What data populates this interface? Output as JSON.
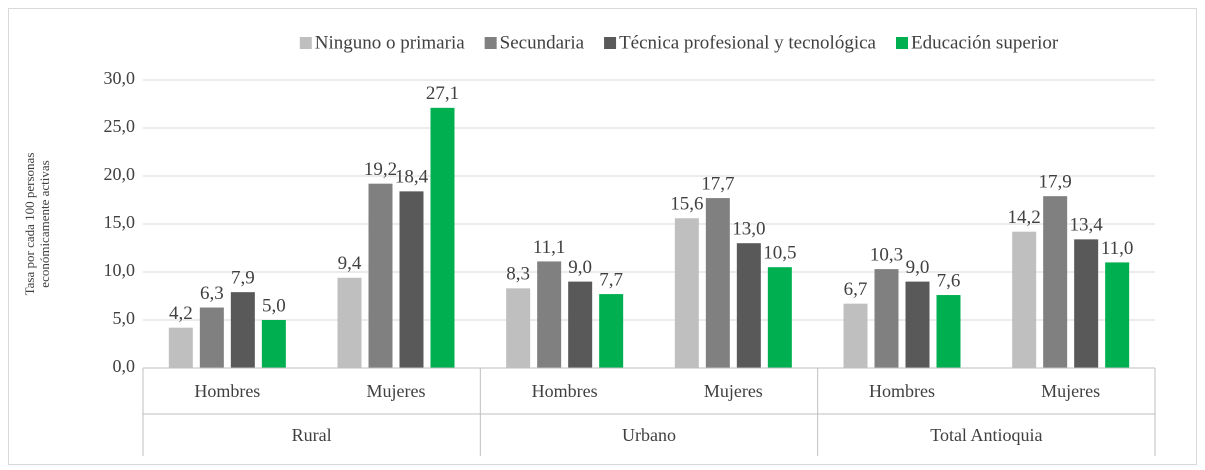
{
  "chart_data": {
    "type": "bar",
    "y_axis_label": "Tasa por cada 100 personas económicamente activas",
    "categories": [
      "Hombres",
      "Mujeres",
      "Hombres",
      "Mujeres",
      "Hombres",
      "Mujeres"
    ],
    "category_groups": [
      "Rural",
      "Urbano",
      "Total Antioquia"
    ],
    "series": [
      {
        "name": "Ninguno o primaria",
        "color": "#bfbfbf",
        "values": [
          4.2,
          9.4,
          8.3,
          15.6,
          6.7,
          14.2
        ],
        "value_labels": [
          "4,2",
          "9,4",
          "8,3",
          "15,6",
          "6,7",
          "14,2"
        ]
      },
      {
        "name": "Secundaria",
        "color": "#808080",
        "values": [
          6.3,
          19.2,
          11.1,
          17.7,
          10.3,
          17.9
        ],
        "value_labels": [
          "6,3",
          "19,2",
          "11,1",
          "17,7",
          "10,3",
          "17,9"
        ]
      },
      {
        "name": "Técnica profesional y tecnológica",
        "color": "#595959",
        "values": [
          7.9,
          18.4,
          9.0,
          13.0,
          9.0,
          13.4
        ],
        "value_labels": [
          "7,9",
          "18,4",
          "9,0",
          "13,0",
          "9,0",
          "13,4"
        ]
      },
      {
        "name": "Educación superior",
        "color": "#00b050",
        "values": [
          5.0,
          27.1,
          7.7,
          10.5,
          7.6,
          11.0
        ],
        "value_labels": [
          "5,0",
          "27,1",
          "7,7",
          "10,5",
          "7,6",
          "11,0"
        ]
      }
    ],
    "ylim": [
      0,
      30
    ],
    "yticks": [
      {
        "value": 0,
        "label": "0,0"
      },
      {
        "value": 5,
        "label": "5,0"
      },
      {
        "value": 10,
        "label": "10,0"
      },
      {
        "value": 15,
        "label": "15,0"
      },
      {
        "value": 20,
        "label": "20,0"
      },
      {
        "value": 25,
        "label": "25,0"
      },
      {
        "value": 30,
        "label": "30,0"
      }
    ],
    "grid": true,
    "legend": "top"
  }
}
